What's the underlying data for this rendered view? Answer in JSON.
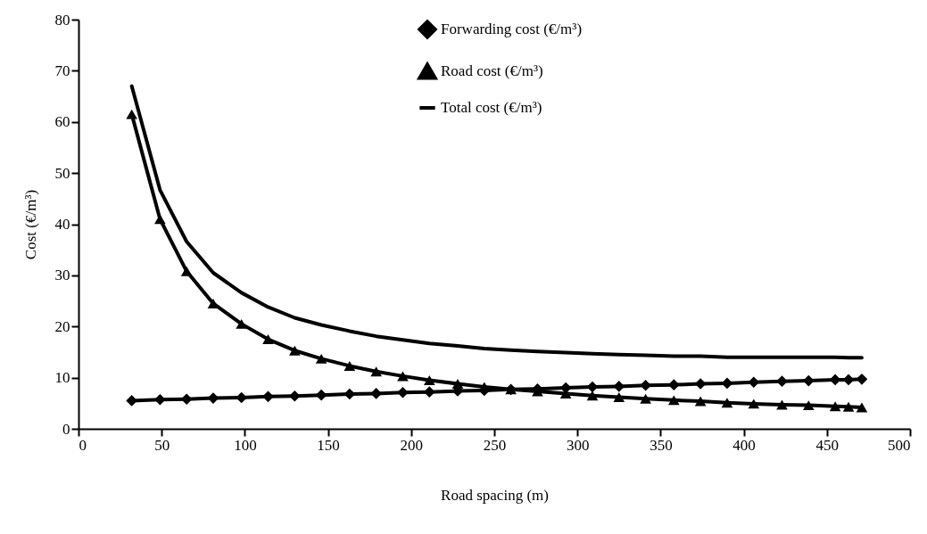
{
  "chart_data": {
    "type": "line",
    "xlabel": "Road spacing (m)",
    "ylabel": "Cost (€/m³)",
    "x": [
      32,
      49,
      65,
      81,
      98,
      114,
      130,
      146,
      163,
      179,
      195,
      211,
      228,
      244,
      260,
      276,
      293,
      309,
      325,
      341,
      358,
      374,
      390,
      406,
      423,
      439,
      455,
      463,
      471
    ],
    "series": [
      {
        "name": "Forwarding cost (€/m³)",
        "color": "#000000",
        "marker": "diamond",
        "values": [
          5.5,
          5.7,
          5.8,
          6.0,
          6.1,
          6.3,
          6.4,
          6.6,
          6.8,
          6.9,
          7.1,
          7.2,
          7.4,
          7.5,
          7.7,
          7.8,
          8.0,
          8.2,
          8.3,
          8.5,
          8.6,
          8.8,
          8.9,
          9.1,
          9.3,
          9.4,
          9.6,
          9.6,
          9.7
        ]
      },
      {
        "name": "Road cost (€/m³)",
        "color": "#000000",
        "marker": "triangle",
        "values": [
          61.5,
          41,
          30.8,
          24.5,
          20.5,
          17.5,
          15.3,
          13.7,
          12.3,
          11.2,
          10.3,
          9.5,
          8.8,
          8.2,
          7.7,
          7.3,
          6.9,
          6.5,
          6.2,
          5.9,
          5.6,
          5.4,
          5.1,
          4.9,
          4.7,
          4.6,
          4.4,
          4.3,
          4.2
        ]
      },
      {
        "name": "Total cost (€/m³)",
        "color": "#000000",
        "marker": "none",
        "values": [
          67.0,
          46.7,
          36.6,
          30.5,
          26.6,
          23.8,
          21.7,
          20.3,
          19.1,
          18.1,
          17.4,
          16.7,
          16.2,
          15.7,
          15.4,
          15.1,
          14.9,
          14.7,
          14.5,
          14.4,
          14.2,
          14.2,
          14.0,
          14.0,
          14.0,
          14.0,
          14.0,
          13.9,
          13.9
        ]
      }
    ],
    "xlim": [
      0,
      500
    ],
    "xticks": [
      0,
      50,
      100,
      150,
      200,
      250,
      300,
      350,
      400,
      450,
      500
    ],
    "ylim": [
      0,
      80
    ],
    "yticks": [
      0,
      10,
      20,
      30,
      40,
      50,
      60,
      70,
      80
    ],
    "legend": "top",
    "grid": false,
    "line_style": "solid"
  }
}
